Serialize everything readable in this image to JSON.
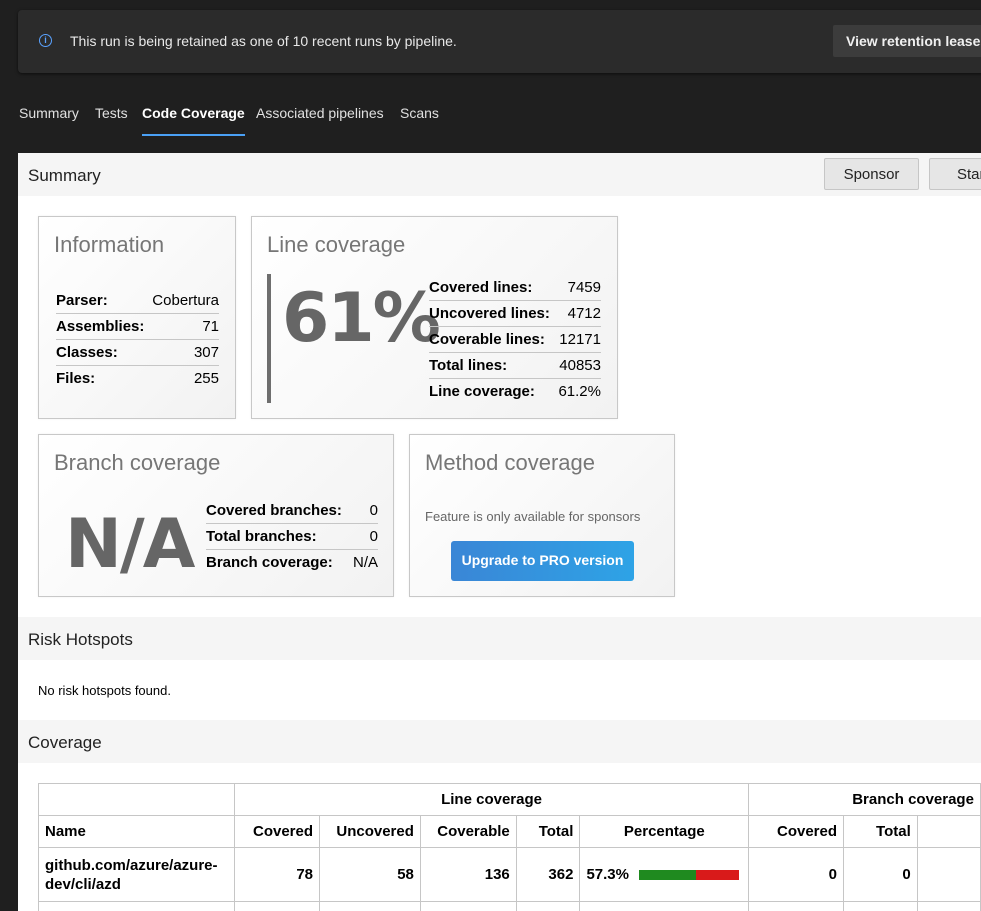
{
  "banner": {
    "text": "This run is being retained as one of 10 recent runs by pipeline.",
    "button": "View retention leases"
  },
  "tabs": [
    "Summary",
    "Tests",
    "Code Coverage",
    "Associated pipelines",
    "Scans"
  ],
  "summary": {
    "title": "Summary",
    "buttons": {
      "sponsor": "Sponsor",
      "star": "Star"
    }
  },
  "information": {
    "title": "Information",
    "rows": [
      {
        "label": "Parser:",
        "value": "Cobertura"
      },
      {
        "label": "Assemblies:",
        "value": "71"
      },
      {
        "label": "Classes:",
        "value": "307"
      },
      {
        "label": "Files:",
        "value": "255"
      }
    ]
  },
  "line_coverage": {
    "title": "Line coverage",
    "big": "61%",
    "rows": [
      {
        "label": "Covered lines:",
        "value": "7459"
      },
      {
        "label": "Uncovered lines:",
        "value": "4712"
      },
      {
        "label": "Coverable lines:",
        "value": "12171"
      },
      {
        "label": "Total lines:",
        "value": "40853"
      },
      {
        "label": "Line coverage:",
        "value": "61.2%"
      }
    ]
  },
  "branch_coverage": {
    "title": "Branch coverage",
    "big": "N/A",
    "rows": [
      {
        "label": "Covered branches:",
        "value": "0"
      },
      {
        "label": "Total branches:",
        "value": "0"
      },
      {
        "label": "Branch coverage:",
        "value": "N/A"
      }
    ]
  },
  "method_coverage": {
    "title": "Method coverage",
    "note": "Feature is only available for sponsors",
    "button": "Upgrade to PRO version"
  },
  "risk": {
    "title": "Risk Hotspots",
    "text": "No risk hotspots found."
  },
  "coverage": {
    "title": "Coverage",
    "group_line": "Line coverage",
    "group_branch": "Branch coverage",
    "columns": [
      "Name",
      "Covered",
      "Uncovered",
      "Coverable",
      "Total",
      "Percentage",
      "Covered",
      "Total"
    ],
    "rows": [
      {
        "name_line1": "github.com/azure/azure-",
        "name_line2": "dev/cli/azd",
        "covered": "78",
        "uncovered": "58",
        "coverable": "136",
        "total": "362",
        "percentage": "57.3%",
        "percentage_value": 0.573,
        "branch_covered": "0",
        "branch_total": "0"
      }
    ]
  },
  "colors": {
    "accent": "#4aa0f5",
    "bar_covered": "#1f8a1f",
    "bar_uncovered": "#d91a1a"
  }
}
